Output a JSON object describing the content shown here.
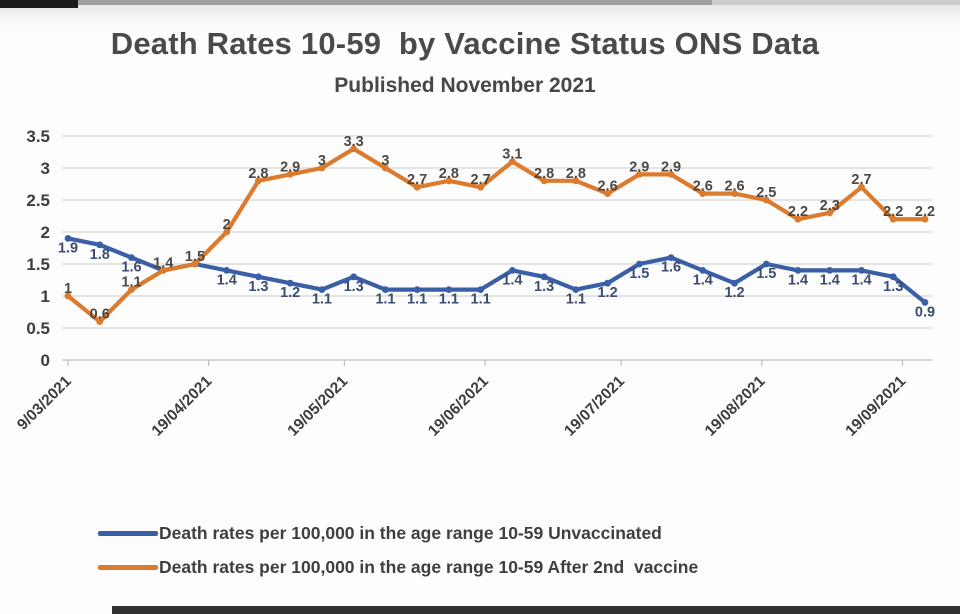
{
  "page": {
    "title": "Death Rates 10-59  by Vaccine Status ONS Data",
    "subtitle": "Published November 2021"
  },
  "colors": {
    "unvaccinated_line": "#3b5fa7",
    "after_2nd_vaccine_line": "#dc7a2e",
    "unvaccinated_label_text": "#3c4d70",
    "after_2nd_vaccine_label_text": "#4d4843",
    "axis_text": "#3d3d3d",
    "gridline": "#d6d6d6",
    "axis_line": "#bfbfbf"
  },
  "legend": [
    {
      "series": "unvaccinated",
      "label": "Death rates per 100,000 in the age range 10-59 Unvaccinated"
    },
    {
      "series": "after_2nd_vaccine",
      "label": "Death rates per 100,000 in the age range 10-59 After 2nd  vaccine"
    }
  ],
  "chart_data": {
    "type": "line",
    "title": "Death Rates 10-59  by Vaccine Status ONS Data",
    "subtitle": "Published November 2021",
    "xlabel": "",
    "ylabel": "",
    "ylim": [
      0,
      3.5
    ],
    "y_ticks": [
      0,
      0.5,
      1,
      1.5,
      2,
      2.5,
      3,
      3.5
    ],
    "grid": true,
    "legend_position": "bottom",
    "x_frequency": "weekly",
    "x_tick_labels": [
      "9/03/2021",
      "19/04/2021",
      "19/05/2021",
      "19/06/2021",
      "19/07/2021",
      "19/08/2021",
      "19/09/2021"
    ],
    "x_tick_week_positions": [
      0,
      4.43,
      8.71,
      13.14,
      17.43,
      21.86,
      26.29
    ],
    "n_points": 28,
    "data_labels_shown": true,
    "series": [
      {
        "name": "Death rates per 100,000 in the age range 10-59 Unvaccinated",
        "color": "#3b5fa7",
        "values": [
          1.9,
          1.8,
          1.6,
          1.4,
          1.5,
          1.4,
          1.3,
          1.2,
          1.1,
          1.3,
          1.1,
          1.1,
          1.1,
          1.1,
          1.4,
          1.3,
          1.1,
          1.2,
          1.5,
          1.6,
          1.4,
          1.2,
          1.5,
          1.4,
          1.4,
          1.4,
          1.3,
          0.9
        ]
      },
      {
        "name": "Death rates per 100,000 in the age range 10-59 After 2nd  vaccine",
        "color": "#dc7a2e",
        "values": [
          1,
          0.6,
          1.1,
          1.4,
          1.5,
          2,
          2.8,
          2.9,
          3,
          3.3,
          3,
          2.7,
          2.8,
          2.7,
          3.1,
          2.8,
          2.8,
          2.6,
          2.9,
          2.9,
          2.6,
          2.6,
          2.5,
          2.2,
          2.3,
          2.7,
          2.2,
          2.2
        ]
      }
    ]
  }
}
